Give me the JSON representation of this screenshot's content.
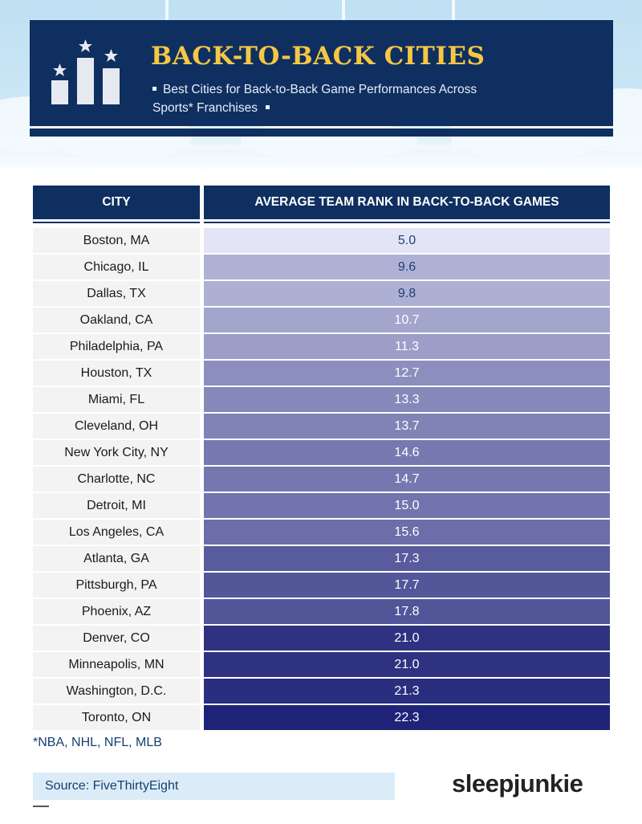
{
  "header": {
    "title": "BACK-TO-BACK CITIES",
    "subtitle": "Best Cities for Back-to-Back Game Performances Across Sports* Franchises"
  },
  "colors": {
    "header_bg": "#0e2f60",
    "title": "#f6c744",
    "scale_light": "#e3e5f6",
    "scale_dark": "#1f2377"
  },
  "icons": [
    "podium-stars-icon"
  ],
  "chart_data": {
    "type": "table",
    "columns": [
      "CITY",
      "AVERAGE TEAM RANK IN BACK-TO-BACK GAMES"
    ],
    "rows": [
      {
        "city": "Boston, MA",
        "value": "5.0"
      },
      {
        "city": "Chicago, IL",
        "value": "9.6"
      },
      {
        "city": "Dallas, TX",
        "value": "9.8"
      },
      {
        "city": "Oakland, CA",
        "value": "10.7"
      },
      {
        "city": "Philadelphia, PA",
        "value": "11.3"
      },
      {
        "city": "Houston, TX",
        "value": "12.7"
      },
      {
        "city": "Miami, FL",
        "value": "13.3"
      },
      {
        "city": "Cleveland, OH",
        "value": "13.7"
      },
      {
        "city": "New York City, NY",
        "value": "14.6"
      },
      {
        "city": "Charlotte, NC",
        "value": "14.7"
      },
      {
        "city": "Detroit, MI",
        "value": "15.0"
      },
      {
        "city": "Los Angeles, CA",
        "value": "15.6"
      },
      {
        "city": "Atlanta, GA",
        "value": "17.3"
      },
      {
        "city": "Pittsburgh, PA",
        "value": "17.7"
      },
      {
        "city": "Phoenix, AZ",
        "value": "17.8"
      },
      {
        "city": "Denver, CO",
        "value": "21.0"
      },
      {
        "city": "Minneapolis, MN",
        "value": "21.0"
      },
      {
        "city": "Washington, D.C.",
        "value": "21.3"
      },
      {
        "city": "Toronto, ON",
        "value": "22.3"
      }
    ]
  },
  "footnote": "*NBA, NHL, NFL, MLB",
  "source": "Source: FiveThirtyEight",
  "brand": "sleepjunkie"
}
